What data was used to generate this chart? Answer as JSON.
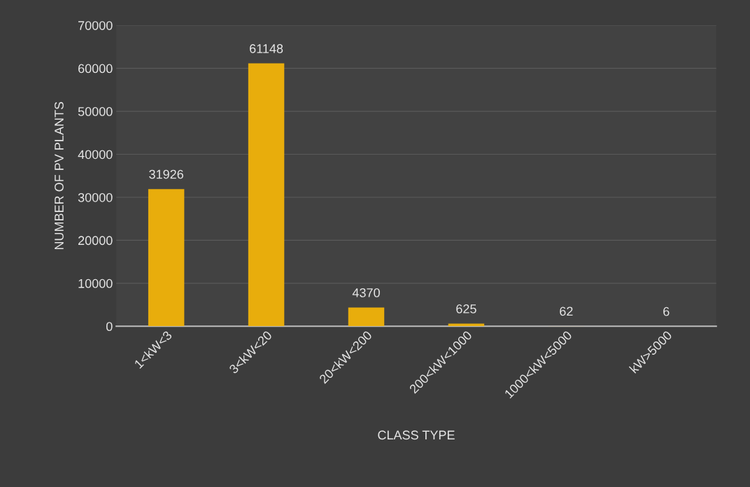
{
  "chart_data": {
    "type": "bar",
    "xlabel": "CLASS TYPE",
    "ylabel": "NUMBER OF PV PLANTS",
    "categories": [
      "1<kW<3",
      "3<kW<20",
      "20<kW<200",
      "200<kW<1000",
      "1000<kW<5000",
      "kW>5000"
    ],
    "values": [
      31926,
      61148,
      4370,
      625,
      62,
      6
    ],
    "color": "#e8ad0c",
    "ylim": [
      0,
      70000
    ],
    "yticks": [
      0,
      10000,
      20000,
      30000,
      40000,
      50000,
      60000,
      70000
    ],
    "grid": "y",
    "data_labels": true
  }
}
